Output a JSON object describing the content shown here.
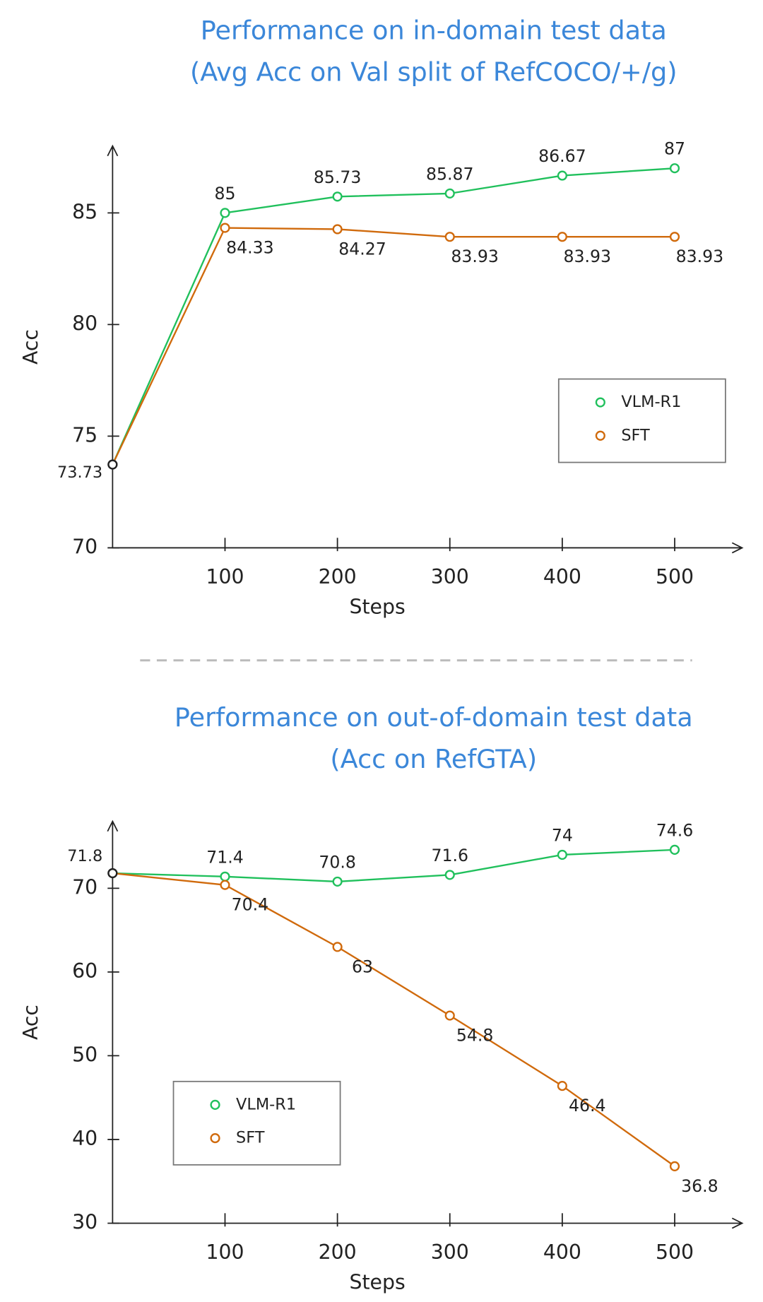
{
  "chart_data": [
    {
      "type": "line",
      "title": "Performance on in-domain test data",
      "subtitle": "(Avg Acc on Val split of RefCOCO/+/g)",
      "x_label": "Steps",
      "y_label": "Acc",
      "x": [
        0,
        100,
        200,
        300,
        400,
        500
      ],
      "xlim": [
        0,
        560
      ],
      "xticks": [
        100,
        200,
        300,
        400,
        500
      ],
      "ylim": [
        70,
        88
      ],
      "yticks": [
        70,
        75,
        80,
        85
      ],
      "legend": "center right",
      "series": [
        {
          "name": "VLM-R1",
          "color": "#20c05c",
          "values": [
            73.73,
            85,
            85.73,
            85.87,
            86.67,
            87
          ]
        },
        {
          "name": "SFT",
          "color": "#d06a0c",
          "values": [
            73.73,
            84.33,
            84.27,
            83.93,
            83.93,
            83.93
          ]
        }
      ]
    },
    {
      "type": "line",
      "title": "Performance on out-of-domain test data",
      "subtitle": "(Acc on RefGTA)",
      "x_label": "Steps",
      "y_label": "Acc",
      "x": [
        0,
        100,
        200,
        300,
        400,
        500
      ],
      "xlim": [
        0,
        560
      ],
      "xticks": [
        100,
        200,
        300,
        400,
        500
      ],
      "ylim": [
        30,
        78
      ],
      "yticks": [
        30,
        40,
        50,
        60,
        70
      ],
      "legend": "lower left",
      "series": [
        {
          "name": "VLM-R1",
          "color": "#20c05c",
          "values": [
            71.8,
            71.4,
            70.8,
            71.6,
            74,
            74.6
          ]
        },
        {
          "name": "SFT",
          "color": "#d06a0c",
          "values": [
            71.8,
            70.4,
            63,
            54.8,
            46.4,
            36.8
          ]
        }
      ]
    }
  ]
}
